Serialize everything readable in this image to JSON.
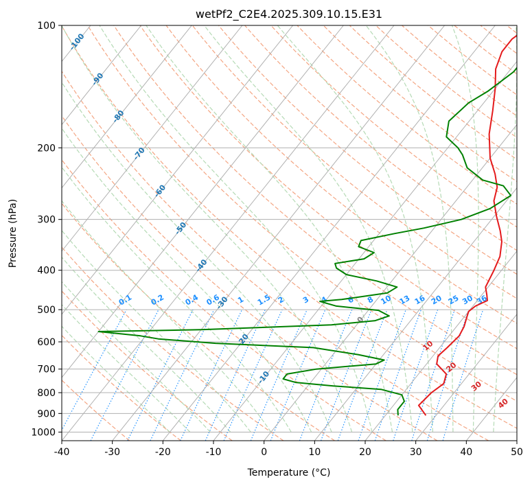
{
  "chart_data": {
    "type": "line",
    "title": "wetPf2_C2E4.2025.309.10.15.E31",
    "xlabel": "Temperature (°C)",
    "ylabel": "Pressure (hPa)",
    "xlim": [
      -40,
      50
    ],
    "ylim": [
      1050,
      100
    ],
    "yscale": "log",
    "grid": true,
    "x_ticks": [
      -40,
      -30,
      -20,
      -10,
      0,
      10,
      20,
      30,
      40,
      50
    ],
    "y_ticks": [
      1000,
      900,
      800,
      700,
      600,
      500,
      400,
      300,
      200,
      100
    ],
    "series": [
      {
        "color": "#e41a1c",
        "points": [
          [
            28,
            910
          ],
          [
            25,
            860
          ],
          [
            25.5,
            800
          ],
          [
            26.5,
            760
          ],
          [
            25.5,
            720
          ],
          [
            22,
            680
          ],
          [
            21,
            650
          ],
          [
            21.5,
            620
          ],
          [
            22,
            580
          ],
          [
            21.5,
            550
          ],
          [
            20.5,
            520
          ],
          [
            20,
            505
          ],
          [
            20.5,
            490
          ],
          [
            22,
            475
          ],
          [
            21,
            460
          ],
          [
            19.5,
            440
          ],
          [
            18.5,
            400
          ],
          [
            17.5,
            370
          ],
          [
            15.5,
            340
          ],
          [
            13.5,
            320
          ],
          [
            10.5,
            295
          ],
          [
            7.5,
            270
          ],
          [
            6,
            250
          ],
          [
            3.5,
            232
          ],
          [
            0,
            212
          ],
          [
            -4,
            185
          ],
          [
            -7,
            162
          ],
          [
            -10,
            143
          ],
          [
            -13,
            128
          ],
          [
            -14.5,
            116
          ],
          [
            -14.5,
            108
          ],
          [
            -13,
            100
          ]
        ]
      },
      {
        "color": "#008000",
        "points": [
          [
            22.5,
            910
          ],
          [
            21.5,
            880
          ],
          [
            21.5,
            840
          ],
          [
            20,
            810
          ],
          [
            15,
            785
          ],
          [
            5,
            770
          ],
          [
            -3,
            755
          ],
          [
            -6,
            740
          ],
          [
            -6,
            720
          ],
          [
            -1,
            700
          ],
          [
            10,
            680
          ],
          [
            11,
            665
          ],
          [
            5,
            645
          ],
          [
            -5,
            620
          ],
          [
            -25,
            605
          ],
          [
            -37,
            590
          ],
          [
            -41,
            580
          ],
          [
            -50,
            566
          ],
          [
            -30,
            560
          ],
          [
            -5,
            545
          ],
          [
            3,
            532
          ],
          [
            5,
            518
          ],
          [
            2,
            502
          ],
          [
            -7,
            490
          ],
          [
            -11,
            477
          ],
          [
            -7,
            472
          ],
          [
            1,
            455
          ],
          [
            2,
            440
          ],
          [
            -3,
            425
          ],
          [
            -10,
            410
          ],
          [
            -13,
            395
          ],
          [
            -14,
            385
          ],
          [
            -9,
            375
          ],
          [
            -8,
            362
          ],
          [
            -12,
            350
          ],
          [
            -12.5,
            338
          ],
          [
            -7,
            325
          ],
          [
            -2,
            315
          ],
          [
            4,
            300
          ],
          [
            8,
            282
          ],
          [
            10,
            262
          ],
          [
            7,
            248
          ],
          [
            2,
            240
          ],
          [
            -3,
            224
          ],
          [
            -6,
            208
          ],
          [
            -8,
            200
          ],
          [
            -12,
            188
          ],
          [
            -14,
            172
          ],
          [
            -13,
            155
          ],
          [
            -11,
            145
          ],
          [
            -9,
            130
          ],
          [
            -9,
            120
          ],
          [
            -9,
            112
          ],
          [
            -9.5,
            105
          ],
          [
            -10,
            100
          ]
        ]
      }
    ],
    "isotherm_labels": [
      "-100",
      "-90",
      "-80",
      "-70",
      "-60",
      "-50",
      "-40",
      "-30",
      "-20",
      "-10",
      "0"
    ],
    "mixing_ratio_labels": [
      "0.1",
      "0.2",
      "0.4",
      "0.6",
      "1",
      "1.5",
      "2",
      "3",
      "4",
      "6",
      "8",
      "10",
      "13",
      "16",
      "20",
      "25",
      "30",
      "36"
    ],
    "moist_adiabat_labels": [
      "10",
      "20",
      "30",
      "40"
    ],
    "colors": {
      "temperature": "#e41a1c",
      "dewpoint": "#008000",
      "isotherm_label": "#1f77b4",
      "mixing_ratio": "#1e90ff",
      "moist_adiabat_label": "#d62728",
      "dry_adiabat": "#f4a582",
      "moist_adiabat": "#b5dab5",
      "grid": "#b0b0b0"
    }
  }
}
